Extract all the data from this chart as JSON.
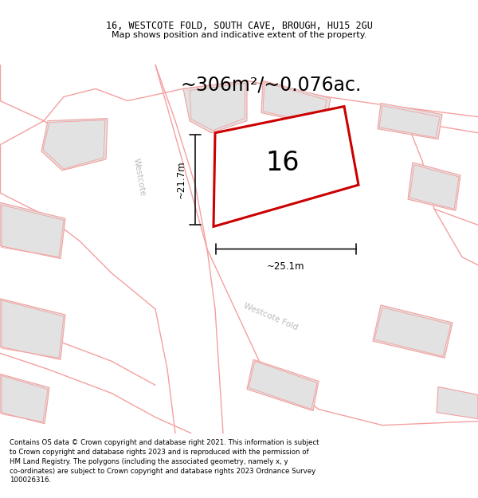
{
  "title_line1": "16, WESTCOTE FOLD, SOUTH CAVE, BROUGH, HU15 2GU",
  "title_line2": "Map shows position and indicative extent of the property.",
  "area_text": "~306m²/~0.076ac.",
  "label_number": "16",
  "dim_vertical": "~21.7m",
  "dim_horizontal": "~25.1m",
  "road_label_upper": "Westcote",
  "road_label_lower": "Westcote Fold",
  "footer_text": "Contains OS data © Crown copyright and database right 2021. This information is subject to Crown copyright and database rights 2023 and is reproduced with the permission of HM Land Registry. The polygons (including the associated geometry, namely x, y co-ordinates) are subject to Crown copyright and database rights 2023 Ordnance Survey 100026316.",
  "bg_color": "#ffffff",
  "map_bg": "#f7f7f7",
  "building_fill": "#e2e2e2",
  "road_color": "#f4a0a0",
  "plot_color": "#cc0000",
  "dim_color": "#111111",
  "road_label_color": "#bbbbbb",
  "title_fontsize": 8.5,
  "footer_fontsize": 6.2,
  "area_fontsize": 17,
  "number_fontsize": 24
}
